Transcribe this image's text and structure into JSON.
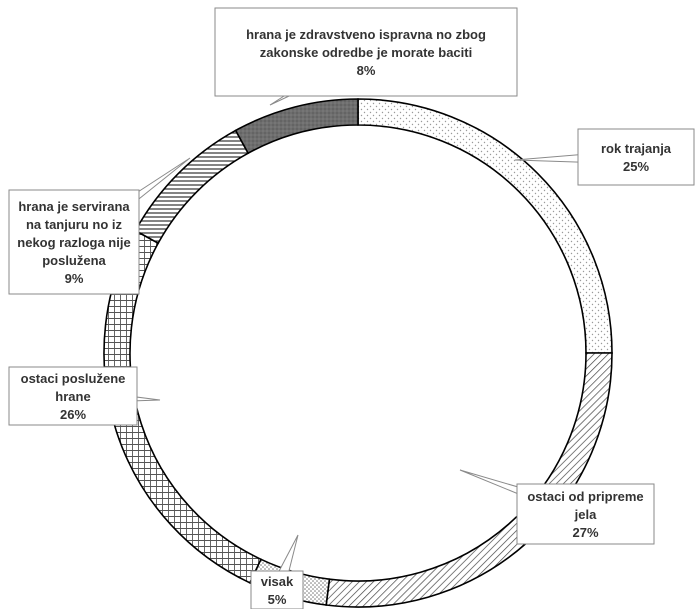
{
  "chart_data": {
    "type": "pie",
    "variant": "doughnut",
    "start_angle": "12 o'clock",
    "direction": "clockwise",
    "legend": "none",
    "slices": [
      {
        "label": [
          "rok trajanja"
        ],
        "value": 25,
        "value_label": "25%",
        "pattern": "dots-light"
      },
      {
        "label": [
          "ostaci od pripreme",
          "jela"
        ],
        "value": 27,
        "value_label": "27%",
        "pattern": "diagonal"
      },
      {
        "label": [
          "visak"
        ],
        "value": 5,
        "value_label": "5%",
        "pattern": "dots-dense"
      },
      {
        "label": [
          "ostaci poslužene",
          "hrane"
        ],
        "value": 26,
        "value_label": "26%",
        "pattern": "grid"
      },
      {
        "label": [
          "hrana je servirana",
          "na tanjuru no iz",
          "nekog razloga nije",
          "poslužena"
        ],
        "value": 9,
        "value_label": "9%",
        "pattern": "horizontal"
      },
      {
        "label": [
          "hrana je zdravstveno ispravna no zbog",
          "zakonske odredbe je morate baciti"
        ],
        "value": 8,
        "value_label": "8%",
        "pattern": "solid-dark"
      }
    ]
  }
}
